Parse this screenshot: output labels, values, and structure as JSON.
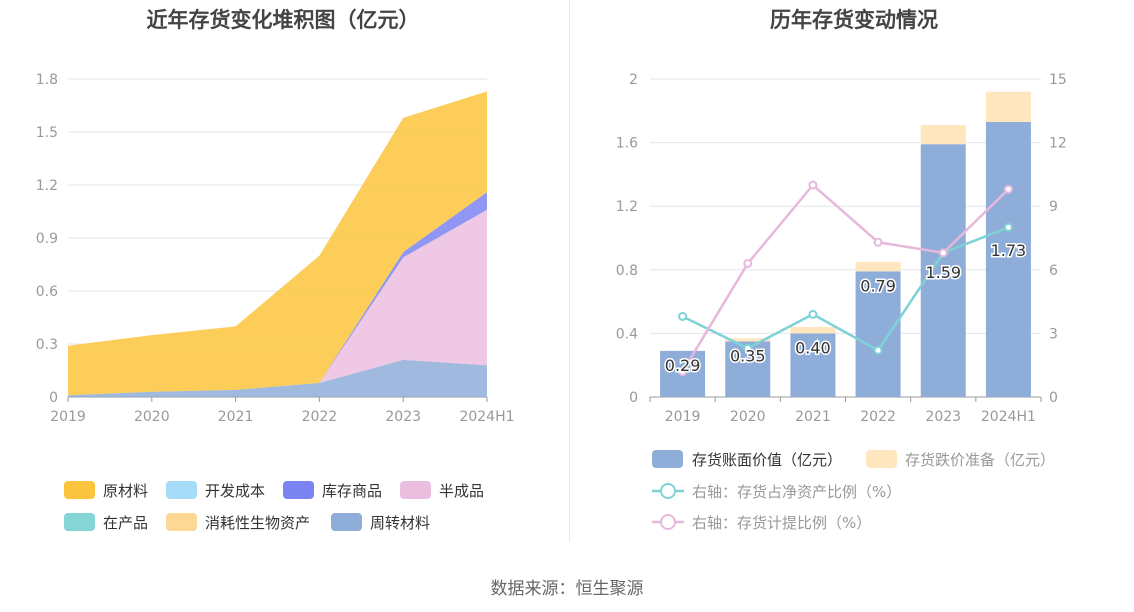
{
  "source": "数据来源：恒生聚源",
  "colors": {
    "raw": "#fcc43c",
    "dev": "#a6dcf7",
    "goods": "#7b84f1",
    "semi": "#ebbedf",
    "wip": "#83d5d6",
    "bio": "#fdd794",
    "turnover": "#8fadd9",
    "book": "#8fadd9",
    "reserve": "#ffe6bf",
    "lineNet": "#7ed2d6",
    "lineProv": "#e6b8dc"
  },
  "chart_data": [
    {
      "type": "area",
      "stacked": true,
      "title": "近年存货变化堆积图（亿元）",
      "x": [
        "2019",
        "2020",
        "2021",
        "2022",
        "2023",
        "2024H1"
      ],
      "ylim": [
        0,
        1.8
      ],
      "yticks": [
        "0",
        "0.3",
        "0.6",
        "0.9",
        "1.2",
        "1.5",
        "1.8"
      ],
      "grid": true,
      "legend_position": "bottom",
      "series": [
        {
          "name": "周转材料",
          "values": [
            0.01,
            0.03,
            0.04,
            0.08,
            0.21,
            0.18
          ]
        },
        {
          "name": "消耗性生物资产",
          "values": [
            0,
            0,
            0,
            0,
            0,
            0
          ]
        },
        {
          "name": "在产品",
          "values": [
            0,
            0,
            0,
            0,
            0,
            0
          ]
        },
        {
          "name": "半成品",
          "values": [
            0,
            0,
            0,
            0,
            0.58,
            0.88
          ]
        },
        {
          "name": "库存商品",
          "values": [
            0,
            0,
            0,
            0,
            0.03,
            0.1
          ]
        },
        {
          "name": "开发成本",
          "values": [
            0,
            0,
            0,
            0,
            0,
            0
          ]
        },
        {
          "name": "原材料",
          "values": [
            0.28,
            0.32,
            0.36,
            0.72,
            0.76,
            0.57
          ]
        }
      ],
      "legend_order": [
        "原材料",
        "开发成本",
        "库存商品",
        "半成品",
        "在产品",
        "消耗性生物资产",
        "周转材料"
      ]
    },
    {
      "type": "bar",
      "stacked": true,
      "title": "历年存货变动情况",
      "x": [
        "2019",
        "2020",
        "2021",
        "2022",
        "2023",
        "2024H1"
      ],
      "ylim": [
        0,
        2
      ],
      "yticks": [
        "0",
        "0.4",
        "0.8",
        "1.2",
        "1.6",
        "2"
      ],
      "y2lim": [
        0,
        15
      ],
      "y2ticks": [
        "0",
        "3",
        "6",
        "9",
        "12",
        "15"
      ],
      "grid": true,
      "legend_position": "bottom",
      "series": [
        {
          "name": "存货账面价值（亿元）",
          "type": "bar",
          "values": [
            0.29,
            0.35,
            0.4,
            0.79,
            1.59,
            1.73
          ],
          "labels": [
            "0.29",
            "0.35",
            "0.40",
            "0.79",
            "1.59",
            "1.73"
          ]
        },
        {
          "name": "存货跌价准备（亿元）",
          "type": "bar",
          "values": [
            0,
            0.02,
            0.04,
            0.06,
            0.12,
            0.19
          ]
        },
        {
          "name": "右轴：存货占净资产比例（%）",
          "type": "line",
          "axis": "right",
          "values": [
            3.8,
            2.3,
            3.9,
            2.2,
            6.8,
            8.0
          ]
        },
        {
          "name": "右轴：存货计提比例（%）",
          "type": "line",
          "axis": "right",
          "values": [
            1.2,
            6.3,
            10.0,
            7.3,
            6.8,
            9.8
          ]
        }
      ]
    }
  ]
}
